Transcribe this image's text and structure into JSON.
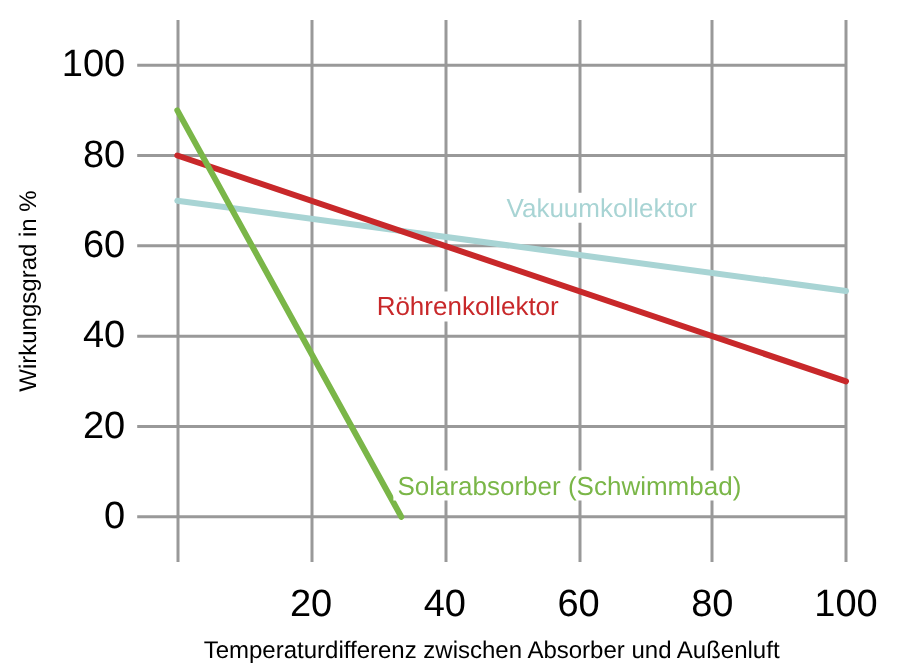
{
  "chart_data": {
    "type": "line",
    "xlabel": "Temperaturdifferenz zwischen Absorber und Außenluft",
    "ylabel": "Wirkungsgrad in %",
    "xlim": [
      -6,
      100
    ],
    "xticks": [
      {
        "value": 0,
        "label": null
      },
      20,
      40,
      60,
      80,
      100
    ],
    "ylim": [
      -10,
      110
    ],
    "yticks": [
      0,
      20,
      40,
      60,
      80,
      100
    ],
    "grid": true,
    "legend": false,
    "marker": "none",
    "line_style": "solid",
    "series": [
      {
        "name": "Vakuumkollektor",
        "color": "#a8d4d4",
        "x": [
          0,
          100
        ],
        "values": [
          70,
          50
        ]
      },
      {
        "name": "Röhrenkollektor",
        "color": "#c8282a",
        "x": [
          0,
          100
        ],
        "values": [
          80,
          30
        ]
      },
      {
        "name": "Solarabsorber (Schwimmbad)",
        "color": "#7ab648",
        "x": [
          0,
          33.5
        ],
        "values": [
          90,
          0
        ]
      }
    ]
  }
}
